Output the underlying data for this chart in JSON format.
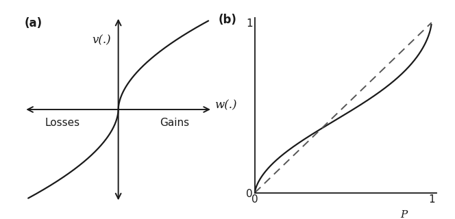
{
  "fig_width": 6.64,
  "fig_height": 3.2,
  "dpi": 100,
  "background_color": "#ffffff",
  "panel_a_label": "(a)",
  "panel_b_label": "(b)",
  "v_label": "v(.)",
  "w_label": "w(.)",
  "losses_label": "Losses",
  "gains_label": "Gains",
  "p_label": "P",
  "tick_0": "0",
  "tick_1_x": "1",
  "tick_1_y": "1",
  "line_color": "#1a1a1a",
  "dashed_color": "#555555",
  "arrow_color": "#1a1a1a",
  "value_alpha": 0.55,
  "prospect_gamma": 0.69
}
